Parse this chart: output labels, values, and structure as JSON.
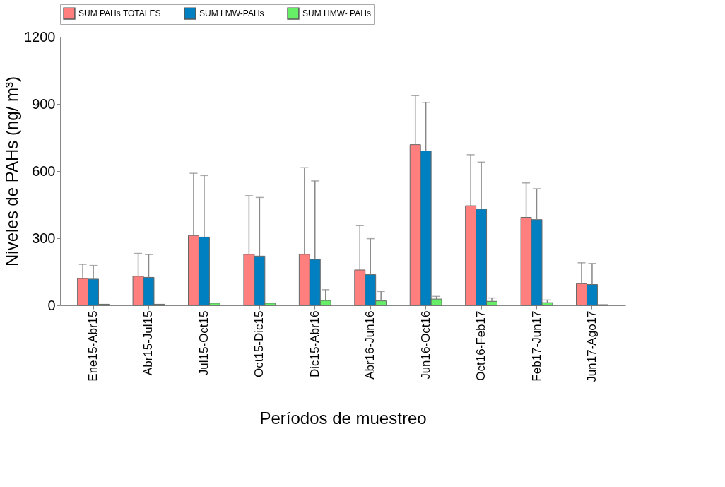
{
  "chart_data": {
    "type": "bar",
    "xlabel": "Períodos de muestreo",
    "ylabel": "Niveles de PAHs (ng/ m³)",
    "categories": [
      "Ene15-Abr15",
      "Abr15-Jul15",
      "Jul15-Oct15",
      "Oct15-Dic15",
      "Dic15-Abr16",
      "Abr16-Jun16",
      "Jun16-Oct16",
      "Oct16-Feb17",
      "Feb17-Jun17",
      "Jun17-Ago17"
    ],
    "series": [
      {
        "name": "SUM PAHs TOTALES",
        "color": "#ff7f7f",
        "values": [
          120,
          130,
          312,
          228,
          228,
          158,
          718,
          445,
          393,
          97
        ],
        "errors": [
          [
            120,
            183
          ],
          [
            130,
            232
          ],
          [
            312,
            590
          ],
          [
            228,
            490
          ],
          [
            228,
            615
          ],
          [
            158,
            356
          ],
          [
            718,
            937
          ],
          [
            445,
            673
          ],
          [
            393,
            547
          ],
          [
            97,
            190
          ]
        ]
      },
      {
        "name": "SUM LMW-PAHs",
        "color": "#0080c0",
        "values": [
          117,
          125,
          305,
          220,
          205,
          137,
          690,
          430,
          383,
          93
        ],
        "errors": [
          [
            117,
            178
          ],
          [
            125,
            227
          ],
          [
            305,
            580
          ],
          [
            220,
            482
          ],
          [
            205,
            556
          ],
          [
            137,
            298
          ],
          [
            690,
            907
          ],
          [
            430,
            640
          ],
          [
            383,
            521
          ],
          [
            93,
            187
          ]
        ]
      },
      {
        "name": "SUM HMW- PAHs",
        "color": "#66ee66",
        "values": [
          5,
          5,
          10,
          10,
          22,
          20,
          28,
          18,
          12,
          3
        ],
        "errors": [
          null,
          null,
          null,
          null,
          [
            22,
            70
          ],
          [
            20,
            62
          ],
          [
            28,
            40
          ],
          [
            18,
            33
          ],
          [
            12,
            24
          ],
          null
        ]
      }
    ],
    "ylim": [
      0,
      1200
    ],
    "yticks": [
      0,
      300,
      600,
      900,
      1200
    ],
    "grid": false,
    "legend": "top"
  }
}
